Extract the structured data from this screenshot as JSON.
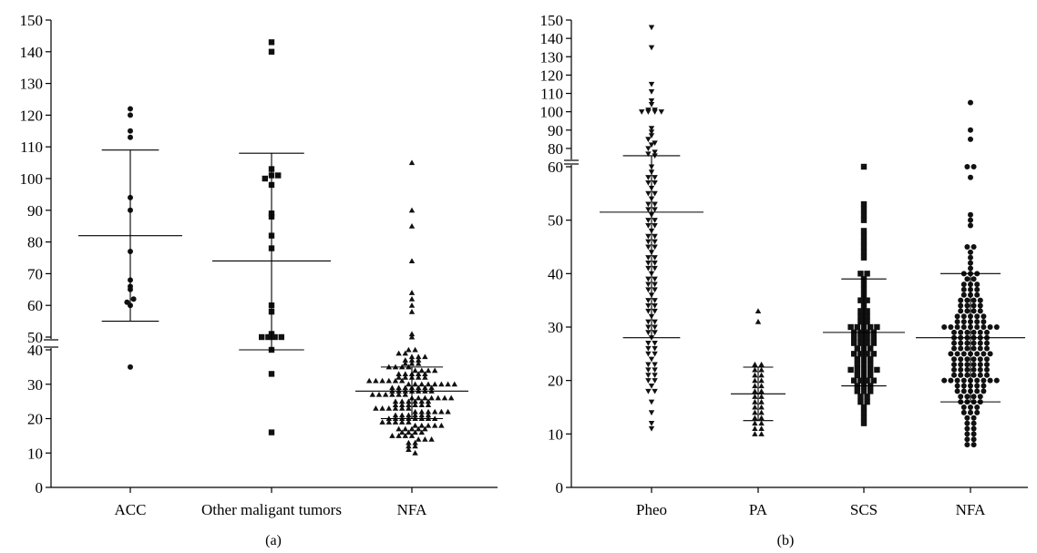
{
  "chart_data": [
    {
      "type": "scatter",
      "panel_label": "(a)",
      "categories": [
        "ACC",
        "Other maligant tumors",
        "NFA"
      ],
      "y_axis": {
        "lower_segment": {
          "range": [
            0,
            40
          ],
          "ticks": [
            "0",
            "10",
            "20",
            "30",
            "40"
          ]
        },
        "upper_segment": {
          "range": [
            50,
            150
          ],
          "ticks": [
            "50",
            "60",
            "70",
            "80",
            "90",
            "100",
            "110",
            "120",
            "130",
            "140",
            "150"
          ]
        },
        "broken": true
      },
      "series": [
        {
          "category": "ACC",
          "marker": "circle",
          "values": [
            35,
            60,
            61,
            62,
            65,
            66,
            68,
            77,
            90,
            94,
            113,
            115,
            120,
            122
          ],
          "mean": 82,
          "sd_low": 55,
          "sd_high": 109
        },
        {
          "category": "Other maligant tumors",
          "marker": "square",
          "values": [
            16,
            33,
            41,
            46,
            49,
            50,
            50,
            51,
            58,
            60,
            78,
            82,
            88,
            89,
            98,
            100,
            101,
            101,
            103,
            140,
            143
          ],
          "mean": 74,
          "sd_low": 40,
          "sd_high": 108
        },
        {
          "category": "NFA",
          "marker": "triangle",
          "values": [
            105,
            90,
            85,
            74,
            64,
            62,
            60,
            58,
            51,
            50,
            40,
            40,
            39,
            39,
            38,
            38,
            38,
            37,
            37,
            37,
            36,
            36,
            36,
            35,
            35,
            35,
            35,
            34,
            34,
            34,
            34,
            33,
            33,
            33,
            33,
            33,
            32,
            32,
            32,
            32,
            32,
            31,
            31,
            31,
            31,
            31,
            31,
            30,
            30,
            30,
            30,
            30,
            30,
            30,
            30,
            29,
            29,
            29,
            29,
            29,
            29,
            29,
            28,
            28,
            28,
            28,
            28,
            28,
            28,
            27,
            27,
            27,
            27,
            27,
            27,
            26,
            26,
            26,
            26,
            26,
            26,
            26,
            25,
            25,
            25,
            25,
            25,
            25,
            24,
            24,
            24,
            24,
            24,
            24,
            23,
            23,
            23,
            23,
            23,
            23,
            22,
            22,
            22,
            22,
            22,
            22,
            21,
            21,
            21,
            21,
            21,
            21,
            20,
            20,
            20,
            20,
            20,
            20,
            20,
            20,
            19,
            19,
            19,
            19,
            19,
            18,
            18,
            18,
            18,
            18,
            17,
            17,
            17,
            17,
            17,
            16,
            16,
            16,
            16,
            15,
            15,
            15,
            15,
            14,
            14,
            14,
            13,
            13,
            12,
            12,
            11,
            10
          ],
          "mean": 28,
          "sd_low": 20,
          "sd_high": 35
        }
      ]
    },
    {
      "type": "scatter",
      "panel_label": "(b)",
      "categories": [
        "Pheo",
        "PA",
        "SCS",
        "NFA"
      ],
      "y_axis": {
        "lower_segment": {
          "range": [
            0,
            60
          ],
          "ticks": [
            "0",
            "10",
            "20",
            "30",
            "40",
            "50",
            "60"
          ]
        },
        "upper_segment": {
          "range": [
            75,
            150
          ],
          "ticks": [
            "80",
            "90",
            "100",
            "110",
            "120",
            "130",
            "140",
            "150"
          ]
        },
        "broken": true
      },
      "series": [
        {
          "category": "Pheo",
          "marker": "triangle-down",
          "values": [
            146,
            135,
            115,
            111,
            106,
            104,
            101,
            101,
            100,
            100,
            100,
            100,
            91,
            89,
            87,
            85,
            83,
            82,
            80,
            78,
            77,
            76,
            60,
            59,
            58,
            57,
            56,
            55,
            54,
            53,
            52,
            51,
            50,
            49,
            48,
            47,
            46,
            45,
            44,
            43,
            42,
            41,
            40,
            39,
            38,
            37,
            36,
            35,
            34,
            33,
            32,
            31,
            30,
            29,
            28,
            27,
            26,
            25,
            24,
            23,
            22,
            21,
            20,
            19,
            18,
            16,
            14,
            12,
            11,
            58,
            55,
            52,
            50,
            47,
            45,
            43,
            41,
            39,
            37,
            35,
            33,
            31,
            29,
            27,
            25,
            23,
            21,
            20,
            18,
            57,
            53,
            49,
            46,
            42,
            38,
            34,
            30,
            26,
            22
          ],
          "mean": 51.5,
          "sd_low": 28,
          "sd_high": 76
        },
        {
          "category": "PA",
          "marker": "triangle",
          "values": [
            33,
            31,
            23,
            23,
            22,
            22,
            21,
            21,
            20,
            20,
            19,
            19,
            18,
            18,
            17,
            17,
            16,
            16,
            15,
            15,
            14,
            14,
            13,
            13,
            12,
            12,
            11,
            11,
            10,
            10
          ],
          "mean": 17.5,
          "sd_low": 12.5,
          "sd_high": 22.5
        },
        {
          "category": "SCS",
          "marker": "square",
          "values": [
            60,
            53,
            52,
            51,
            50,
            48,
            47,
            46,
            45,
            44,
            43,
            40,
            40,
            39,
            38,
            37,
            36,
            35,
            35,
            34,
            33,
            33,
            32,
            32,
            31,
            31,
            30,
            30,
            30,
            30,
            30,
            29,
            29,
            29,
            29,
            28,
            28,
            28,
            28,
            27,
            27,
            27,
            27,
            26,
            26,
            26,
            25,
            25,
            25,
            25,
            24,
            24,
            24,
            23,
            23,
            23,
            22,
            22,
            22,
            22,
            22,
            21,
            21,
            21,
            20,
            20,
            20,
            20,
            19,
            19,
            19,
            18,
            18,
            18,
            17,
            17,
            16,
            16,
            15,
            14,
            13,
            12
          ],
          "mean": 29,
          "sd_low": 19,
          "sd_high": 39
        },
        {
          "category": "NFA",
          "marker": "circle",
          "values": [
            105,
            90,
            85,
            60,
            60,
            58,
            51,
            50,
            49,
            45,
            45,
            44,
            43,
            42,
            41,
            40,
            40,
            40,
            39,
            39,
            38,
            38,
            38,
            37,
            37,
            37,
            36,
            36,
            36,
            35,
            35,
            35,
            35,
            34,
            34,
            34,
            34,
            33,
            33,
            33,
            33,
            32,
            32,
            32,
            32,
            32,
            31,
            31,
            31,
            31,
            31,
            30,
            30,
            30,
            30,
            30,
            30,
            30,
            30,
            30,
            29,
            29,
            29,
            29,
            29,
            29,
            28,
            28,
            28,
            28,
            28,
            28,
            27,
            27,
            27,
            27,
            27,
            27,
            26,
            26,
            26,
            26,
            26,
            26,
            25,
            25,
            25,
            25,
            25,
            25,
            25,
            24,
            24,
            24,
            24,
            24,
            24,
            23,
            23,
            23,
            23,
            23,
            23,
            22,
            22,
            22,
            22,
            22,
            22,
            21,
            21,
            21,
            21,
            21,
            21,
            20,
            20,
            20,
            20,
            20,
            20,
            20,
            20,
            20,
            19,
            19,
            19,
            19,
            19,
            18,
            18,
            18,
            18,
            18,
            17,
            17,
            17,
            17,
            16,
            16,
            16,
            16,
            15,
            15,
            15,
            14,
            14,
            14,
            13,
            13,
            12,
            12,
            11,
            11,
            10,
            10,
            9,
            9,
            8,
            8
          ],
          "mean": 28,
          "sd_low": 16,
          "sd_high": 40
        }
      ]
    }
  ]
}
